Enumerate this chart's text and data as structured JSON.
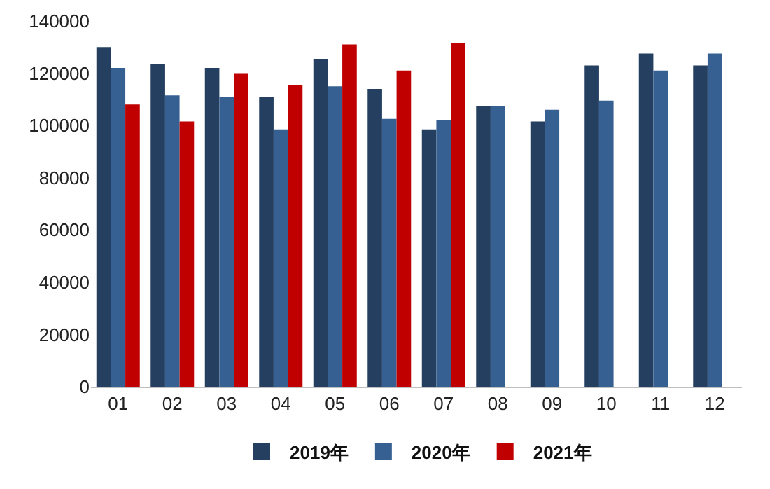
{
  "chart_data": {
    "type": "bar",
    "categories": [
      "01",
      "02",
      "03",
      "04",
      "05",
      "06",
      "07",
      "08",
      "09",
      "10",
      "11",
      "12"
    ],
    "series": [
      {
        "name": "2019年",
        "color": "#243f60",
        "values": [
          130000,
          123500,
          122000,
          111000,
          125500,
          114000,
          98500,
          107500,
          101500,
          123000,
          127500,
          123000
        ]
      },
      {
        "name": "2020年",
        "color": "#376092",
        "values": [
          122000,
          111500,
          111000,
          98500,
          115000,
          102500,
          102000,
          107500,
          106000,
          109500,
          121000,
          127500
        ]
      },
      {
        "name": "2021年",
        "color": "#c00000",
        "values": [
          108000,
          101500,
          120000,
          115500,
          131000,
          121000,
          131500,
          null,
          null,
          null,
          null,
          null
        ]
      }
    ],
    "ylim": [
      0,
      140000
    ],
    "yticks": [
      0,
      20000,
      40000,
      60000,
      80000,
      100000,
      120000,
      140000
    ],
    "grid": false,
    "legend": "bottom"
  }
}
